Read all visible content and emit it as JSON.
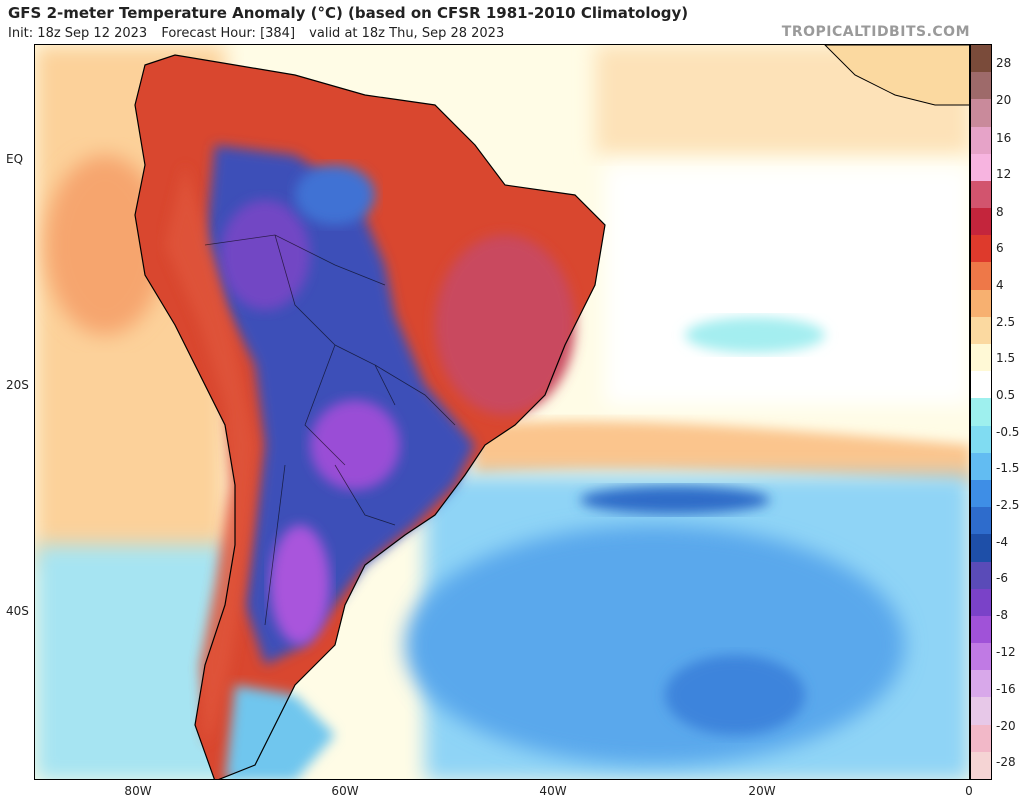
{
  "header": {
    "title": "GFS 2-meter Temperature Anomaly (°C) (based on CFSR 1981-2010 Climatology)",
    "init": "Init: 18z Sep 12 2023",
    "forecast_hour": "Forecast Hour: [384]",
    "valid": "valid at 18z Thu, Sep 28 2023",
    "brand": "TROPICALTIDBITS.COM"
  },
  "map": {
    "lat_labels": [
      "EQ",
      "20S",
      "40S"
    ],
    "lon_labels": [
      "80W",
      "60W",
      "40W",
      "20W",
      "0"
    ]
  },
  "colorbar": {
    "labels": [
      "28",
      "20",
      "16",
      "12",
      "8",
      "6",
      "4",
      "2.5",
      "1.5",
      "0.5",
      "-0.5",
      "-1.5",
      "-2.5",
      "-4",
      "-6",
      "-8",
      "-12",
      "-16",
      "-20",
      "-28"
    ],
    "colors": [
      "#7a4b3a",
      "#9e6a6a",
      "#c98a9b",
      "#e6a3c8",
      "#f7b4e0",
      "#d2546e",
      "#c4253c",
      "#de3a2c",
      "#ee7848",
      "#f7b070",
      "#fbd9a0",
      "#fff9d6",
      "#ffffff",
      "#9ef0ee",
      "#80dcf2",
      "#62bcf2",
      "#3e8ee6",
      "#2e6ccc",
      "#1e4fa8",
      "#5a4bb8",
      "#7a42c8",
      "#a052d8",
      "#c07ae4",
      "#d8a8ea",
      "#e7c8e8",
      "#f2b8c8",
      "#f5d4d4"
    ]
  }
}
